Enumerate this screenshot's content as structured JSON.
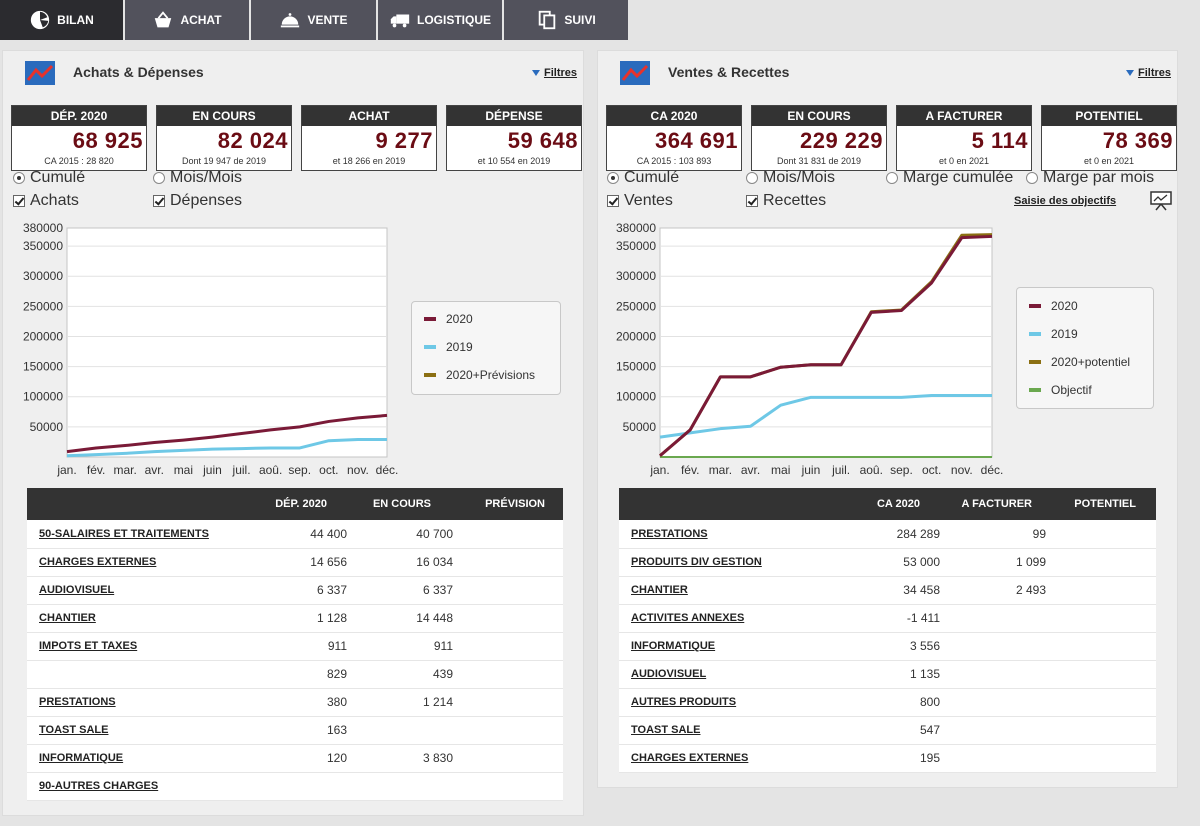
{
  "colors": {
    "series_2020": "#7a1a37",
    "series_2019": "#6ec8e6",
    "series_prev": "#8b6f12",
    "series_objectif": "#6aa84f",
    "kpi_value": "#6b0c14"
  },
  "tabs": [
    {
      "label": "BILAN",
      "icon": "pie-chart-icon",
      "active": true
    },
    {
      "label": "ACHAT",
      "icon": "basket-icon"
    },
    {
      "label": "VENTE",
      "icon": "cloche-icon"
    },
    {
      "label": "LOGISTIQUE",
      "icon": "truck-icon"
    },
    {
      "label": "SUIVI",
      "icon": "copy-icon"
    }
  ],
  "left": {
    "title": "Achats & Dépenses",
    "filters": "Filtres",
    "kpis": [
      {
        "label": "DÉP. 2020",
        "value": "68 925",
        "sub": "CA 2015 : 28 820"
      },
      {
        "label": "EN COURS",
        "value": "82 024",
        "sub": "Dont 19 947 de 2019"
      },
      {
        "label": "ACHAT",
        "value": "9 277",
        "sub": "et 18 266 en 2019"
      },
      {
        "label": "DÉPENSE",
        "value": "59 648",
        "sub": "et 10 554 en 2019"
      }
    ],
    "options": {
      "cumule": "Cumulé",
      "mois": "Mois/Mois",
      "achats": "Achats",
      "depenses": "Dépenses"
    },
    "legend": [
      "2020",
      "2019",
      "2020+Prévisions"
    ],
    "table": {
      "headers": [
        "DÉP. 2020",
        "EN COURS",
        "PRÉVISION"
      ],
      "rows": [
        {
          "label": "50-SALAIRES ET TRAITEMENTS",
          "a": "44 400",
          "b": "40 700"
        },
        {
          "label": "CHARGES EXTERNES",
          "a": "14 656",
          "b": "16 034"
        },
        {
          "label": "AUDIOVISUEL",
          "a": "6 337",
          "b": "6 337"
        },
        {
          "label": "CHANTIER",
          "a": "1 128",
          "b": "14 448"
        },
        {
          "label": "IMPOTS ET TAXES",
          "a": "911",
          "b": "911"
        },
        {
          "label": "",
          "a": "829",
          "b": "439"
        },
        {
          "label": "PRESTATIONS",
          "a": "380",
          "b": "1 214"
        },
        {
          "label": "TOAST SALE",
          "a": "163",
          "b": ""
        },
        {
          "label": " INFORMATIQUE",
          "a": "120",
          "b": "3 830"
        },
        {
          "label": "90-AUTRES CHARGES",
          "a": "",
          "b": ""
        }
      ]
    }
  },
  "right": {
    "title": "Ventes & Recettes",
    "filters": "Filtres",
    "kpis": [
      {
        "label": "CA 2020",
        "value": "364 691",
        "sub": "CA 2015 : 103 893"
      },
      {
        "label": "EN COURS",
        "value": "229 229",
        "sub": "Dont 31 831 de 2019"
      },
      {
        "label": "A FACTURER",
        "value": "5 114",
        "sub": "et 0 en 2021"
      },
      {
        "label": "POTENTIEL",
        "value": "78 369",
        "sub": "et 0 en 2021"
      }
    ],
    "options": {
      "cumule": "Cumulé",
      "mois": "Mois/Mois",
      "marge_cumulee": "Marge cumulée",
      "marge_mois": "Marge par mois",
      "ventes": "Ventes",
      "recettes": "Recettes"
    },
    "saisie": "Saisie des objectifs",
    "legend": [
      "2020",
      "2019",
      "2020+potentiel",
      "Objectif"
    ],
    "table": {
      "headers": [
        "CA 2020",
        "A FACTURER",
        "POTENTIEL"
      ],
      "rows": [
        {
          "label": "PRESTATIONS",
          "a": "284 289",
          "b": "99"
        },
        {
          "label": "PRODUITS DIV GESTION",
          "a": "53 000",
          "b": "1 099"
        },
        {
          "label": "CHANTIER",
          "a": "34 458",
          "b": "2 493"
        },
        {
          "label": "ACTIVITES ANNEXES",
          "a": "-1 411",
          "b": ""
        },
        {
          "label": " INFORMATIQUE",
          "a": "3 556",
          "b": ""
        },
        {
          "label": "AUDIOVISUEL",
          "a": "1 135",
          "b": ""
        },
        {
          "label": "AUTRES PRODUITS",
          "a": "800",
          "b": ""
        },
        {
          "label": "TOAST SALE",
          "a": "547",
          "b": ""
        },
        {
          "label": "CHARGES EXTERNES",
          "a": "195",
          "b": ""
        }
      ]
    }
  },
  "chart_data": [
    {
      "type": "line",
      "title": "Achats & Dépenses",
      "categories": [
        "jan.",
        "fév.",
        "mar.",
        "avr.",
        "mai",
        "juin",
        "juil.",
        "aoû.",
        "sep.",
        "oct.",
        "nov.",
        "déc."
      ],
      "yticks": [
        50000,
        100000,
        150000,
        200000,
        250000,
        300000,
        350000,
        380000
      ],
      "ylim": [
        0,
        380000
      ],
      "series": [
        {
          "name": "2020",
          "values": [
            9000,
            15000,
            19000,
            24000,
            28000,
            33000,
            39000,
            45000,
            50000,
            59000,
            65000,
            69000
          ]
        },
        {
          "name": "2019",
          "values": [
            2000,
            4000,
            6000,
            9000,
            11000,
            13000,
            14000,
            15000,
            15000,
            27000,
            29000,
            29000
          ]
        }
      ]
    },
    {
      "type": "line",
      "title": "Ventes & Recettes",
      "categories": [
        "jan.",
        "fév.",
        "mar.",
        "avr.",
        "mai",
        "juin",
        "juil.",
        "aoû.",
        "sep.",
        "oct.",
        "nov.",
        "déc."
      ],
      "yticks": [
        50000,
        100000,
        150000,
        200000,
        250000,
        300000,
        350000,
        380000
      ],
      "ylim": [
        0,
        380000
      ],
      "series": [
        {
          "name": "2020",
          "values": [
            2000,
            45000,
            133000,
            133000,
            149000,
            153000,
            153000,
            240000,
            243000,
            289000,
            364000,
            366000
          ]
        },
        {
          "name": "2019",
          "values": [
            33000,
            40000,
            47000,
            51000,
            86000,
            99000,
            99000,
            99000,
            99000,
            102000,
            102000,
            102000
          ]
        },
        {
          "name": "2020+potentiel",
          "values": [
            2000,
            45000,
            133000,
            133000,
            149000,
            153000,
            153000,
            241000,
            244000,
            291000,
            368000,
            369000
          ]
        },
        {
          "name": "Objectif",
          "values": [
            0,
            0,
            0,
            0,
            0,
            0,
            0,
            0,
            0,
            0,
            0,
            0
          ]
        }
      ]
    }
  ]
}
